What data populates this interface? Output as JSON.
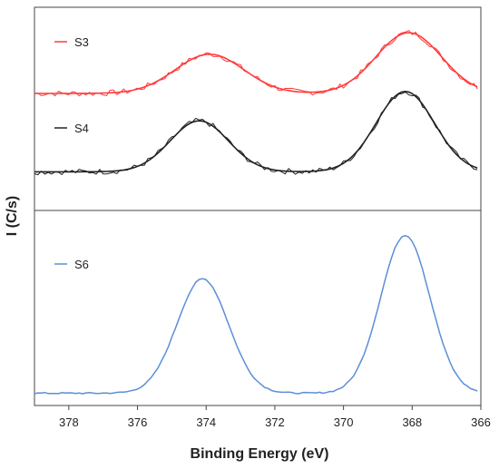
{
  "chart_data": {
    "type": "line",
    "xlabel": "Binding Energy (eV)",
    "ylabel": "I (C/s)",
    "xlim": [
      379,
      366
    ],
    "x_reversed": true,
    "x_ticks": [
      "378",
      "376",
      "374",
      "372",
      "370",
      "368",
      "366"
    ],
    "x_tick_values": [
      378,
      376,
      374,
      372,
      370,
      368,
      366
    ],
    "panels": [
      {
        "name": "top",
        "series": [
          {
            "name": "S3",
            "color": "#ff3b3b",
            "style": "raw+fit",
            "baseline": 0.02,
            "peaks": [
              {
                "center": 373.9,
                "height": 0.4,
                "width": 1.0
              },
              {
                "center": 368.1,
                "height": 0.62,
                "width": 0.95
              }
            ],
            "noise": 0.06,
            "offset": 0.78
          },
          {
            "name": "S4",
            "color": "#222222",
            "style": "raw+fit",
            "baseline": 0.0,
            "peaks": [
              {
                "center": 374.2,
                "height": 0.52,
                "width": 0.85
              },
              {
                "center": 368.2,
                "height": 0.82,
                "width": 0.85
              }
            ],
            "noise": 0.06,
            "offset": 0.0
          }
        ]
      },
      {
        "name": "bottom",
        "series": [
          {
            "name": "S6",
            "color": "#5b8fd6",
            "style": "line",
            "baseline": 0.0,
            "peaks": [
              {
                "center": 374.1,
                "height": 0.68,
                "width": 0.75
              },
              {
                "center": 368.2,
                "height": 0.94,
                "width": 0.72
              }
            ],
            "noise": 0.008,
            "offset": 0.0
          }
        ]
      }
    ],
    "grid": false,
    "legend_placement": "top-left of each panel"
  }
}
